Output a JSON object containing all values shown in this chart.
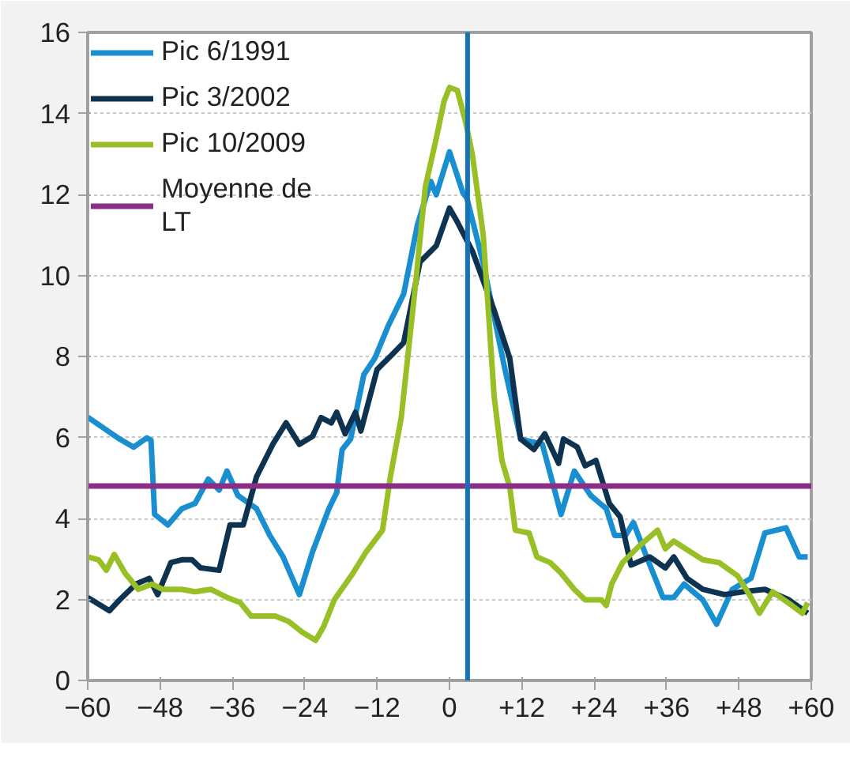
{
  "chart_data": {
    "type": "line",
    "xlim": [
      -60,
      60
    ],
    "ylim": [
      0,
      16
    ],
    "xticks": [
      -60,
      -48,
      -36,
      -24,
      -12,
      0,
      {
        "value": 12,
        "label": "+12"
      },
      {
        "value": 24,
        "label": "+24"
      },
      {
        "value": 36,
        "label": "+36"
      },
      {
        "value": 48,
        "label": "+48"
      },
      {
        "value": 60,
        "label": "+60"
      }
    ],
    "yticks": [
      0,
      2,
      4,
      6,
      8,
      10,
      12,
      14,
      16
    ],
    "grid": "y",
    "legend": "top left",
    "line_style": "solid",
    "marker": "none",
    "series": [
      {
        "name": "Pic 6/1991",
        "color": "#1a8fd0",
        "x": [
          -60,
          -54.7,
          -52.4,
          -50.2,
          -49.5,
          -48.9,
          -46.7,
          -44.4,
          -42.2,
          -40,
          -38.2,
          -36.9,
          -35.1,
          -32,
          -29.8,
          -27.6,
          -24.9,
          -22.7,
          -20,
          -18.7,
          -17.8,
          -16.4,
          -14.2,
          -12.4,
          -10.2,
          -7.6,
          -5.3,
          -3.1,
          -2.2,
          0,
          2.2,
          2.9,
          5.6,
          9.2,
          11.8,
          15.4,
          18.5,
          20.7,
          23.4,
          26,
          27.4,
          29.2,
          30.5,
          32.7,
          35.4,
          37.2,
          38.9,
          42,
          44.3,
          46.9,
          50,
          52.3,
          55.8,
          58,
          59.4
        ],
        "values": [
          6.5,
          5.96,
          5.76,
          5.99,
          5.93,
          4.1,
          3.84,
          4.24,
          4.37,
          4.97,
          4.7,
          5.17,
          4.57,
          4.24,
          3.58,
          3.05,
          2.12,
          3.18,
          4.24,
          4.64,
          5.7,
          5.96,
          7.55,
          7.95,
          8.74,
          9.54,
          11.26,
          12.32,
          11.99,
          13.05,
          12.05,
          11.9,
          10.3,
          7.68,
          5.96,
          5.83,
          4.1,
          5.17,
          4.57,
          4.24,
          3.58,
          3.58,
          3.9,
          3.05,
          2.05,
          2.05,
          2.38,
          1.99,
          1.39,
          2.25,
          2.52,
          3.64,
          3.77,
          3.05,
          3.05
        ]
      },
      {
        "name": "Pic 3/2002",
        "color": "#0d3350",
        "x": [
          -60,
          -56.4,
          -54.7,
          -52,
          -49.8,
          -48.4,
          -46.2,
          -44.4,
          -42.7,
          -41.3,
          -38.2,
          -36.4,
          -34.2,
          -32,
          -29.3,
          -27.1,
          -24.9,
          -22.7,
          -21.3,
          -19.6,
          -18.7,
          -17.3,
          -15.6,
          -14.7,
          -12,
          -9.3,
          -7.6,
          -4.9,
          -2.2,
          0,
          1.3,
          3.8,
          7.4,
          10,
          11.8,
          14,
          15.8,
          18.1,
          18.9,
          21.2,
          22.5,
          24.3,
          26.5,
          28.3,
          30.1,
          33.2,
          35.8,
          37.2,
          39.4,
          42,
          45.6,
          48.7,
          52.3,
          56.3,
          59.4
        ],
        "values": [
          2.05,
          1.72,
          1.99,
          2.38,
          2.52,
          2.12,
          2.91,
          2.98,
          2.98,
          2.78,
          2.72,
          3.84,
          3.84,
          5.03,
          5.83,
          6.36,
          5.83,
          6.03,
          6.49,
          6.36,
          6.62,
          6.09,
          6.62,
          6.16,
          7.68,
          8.08,
          8.34,
          10.33,
          10.73,
          11.66,
          11.32,
          10.6,
          9.14,
          7.95,
          5.96,
          5.7,
          6.09,
          5.36,
          5.96,
          5.76,
          5.3,
          5.43,
          4.37,
          4.04,
          2.85,
          3.05,
          2.78,
          3.05,
          2.52,
          2.25,
          2.12,
          2.19,
          2.25,
          1.99,
          1.66
        ]
      },
      {
        "name": "Pic 10/2009",
        "color": "#99bf26",
        "x": [
          -60,
          -58.2,
          -56.9,
          -55.6,
          -53.8,
          -51.6,
          -49.3,
          -47.6,
          -44.4,
          -42.2,
          -39.6,
          -36.9,
          -34.7,
          -32.9,
          -30.2,
          -28.9,
          -26.7,
          -24.4,
          -22.2,
          -20.9,
          -19.1,
          -16,
          -13.8,
          -11.1,
          -9.8,
          -8,
          -5.8,
          -4,
          -2.2,
          -0.9,
          0,
          1.3,
          2.7,
          3.8,
          5.6,
          7.4,
          8.7,
          10,
          10.9,
          13.2,
          14.5,
          16.7,
          18.5,
          20.7,
          22.5,
          25.2,
          26,
          26.9,
          28.7,
          31.4,
          34.5,
          35.8,
          37.2,
          39.9,
          42,
          44.7,
          47.8,
          50,
          51.4,
          53.6,
          56.8,
          58.5,
          59.4
        ],
        "values": [
          3.05,
          2.98,
          2.72,
          3.11,
          2.65,
          2.25,
          2.38,
          2.25,
          2.25,
          2.19,
          2.25,
          2.05,
          1.92,
          1.59,
          1.59,
          1.59,
          1.46,
          1.19,
          0.99,
          1.32,
          1.99,
          2.65,
          3.18,
          3.71,
          5.03,
          6.49,
          9.54,
          12.19,
          13.38,
          14.3,
          14.64,
          14.57,
          13.77,
          12.98,
          10.99,
          7.02,
          5.43,
          4.77,
          3.71,
          3.64,
          3.05,
          2.91,
          2.65,
          2.25,
          1.99,
          1.99,
          1.85,
          2.38,
          2.91,
          3.31,
          3.71,
          3.25,
          3.44,
          3.18,
          2.98,
          2.91,
          2.58,
          2.05,
          1.66,
          2.19,
          1.85,
          1.66,
          1.92
        ]
      },
      {
        "name": "Moyenne de LT",
        "color": "#8b2f86",
        "x": [
          -60,
          60
        ],
        "values": [
          4.8,
          4.8
        ]
      }
    ],
    "ref_lines": [
      {
        "axis": "x",
        "value": 3,
        "color": "#1572b6",
        "line_style": "solid"
      }
    ]
  }
}
